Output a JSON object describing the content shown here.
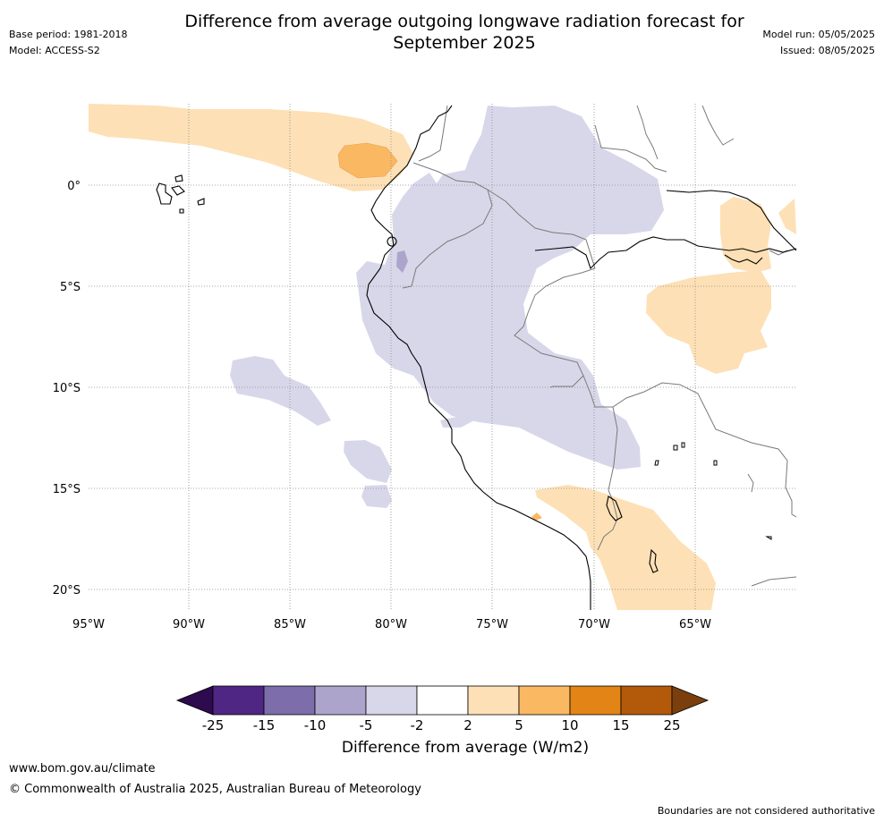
{
  "header": {
    "title_line1": "Difference from average outgoing longwave radiation forecast for",
    "title_line2": "September 2025",
    "base_period": "Base period: 1981-2018",
    "model": "Model: ACCESS-S2",
    "model_run": "Model run: 05/05/2025",
    "issued": "Issued: 08/05/2025"
  },
  "map": {
    "lon_ticks": [
      "95°W",
      "90°W",
      "85°W",
      "80°W",
      "75°W",
      "70°W",
      "65°W"
    ],
    "lat_ticks": [
      "0°",
      "5°S",
      "10°S",
      "15°S",
      "20°S"
    ],
    "gridlines": true
  },
  "colorbar": {
    "label": "Difference from average (W/m2)",
    "ticks": [
      "-25",
      "-15",
      "-10",
      "-5",
      "-2",
      "2",
      "5",
      "10",
      "15",
      "25"
    ],
    "colors": {
      "under": "#2d0b4e",
      "bins": [
        "#4f2683",
        "#7d6daa",
        "#ada4cc",
        "#d8d7ea",
        "#ffffff",
        "#fde0b5",
        "#fbb862",
        "#e28416",
        "#b3590a"
      ],
      "over": "#7a3f0d"
    }
  },
  "footer": {
    "url": "www.bom.gov.au/climate",
    "copyright": "© Commonwealth of Australia 2025, Australian Bureau of Meteorology",
    "disclaimer": "Boundaries are not considered authoritative"
  }
}
